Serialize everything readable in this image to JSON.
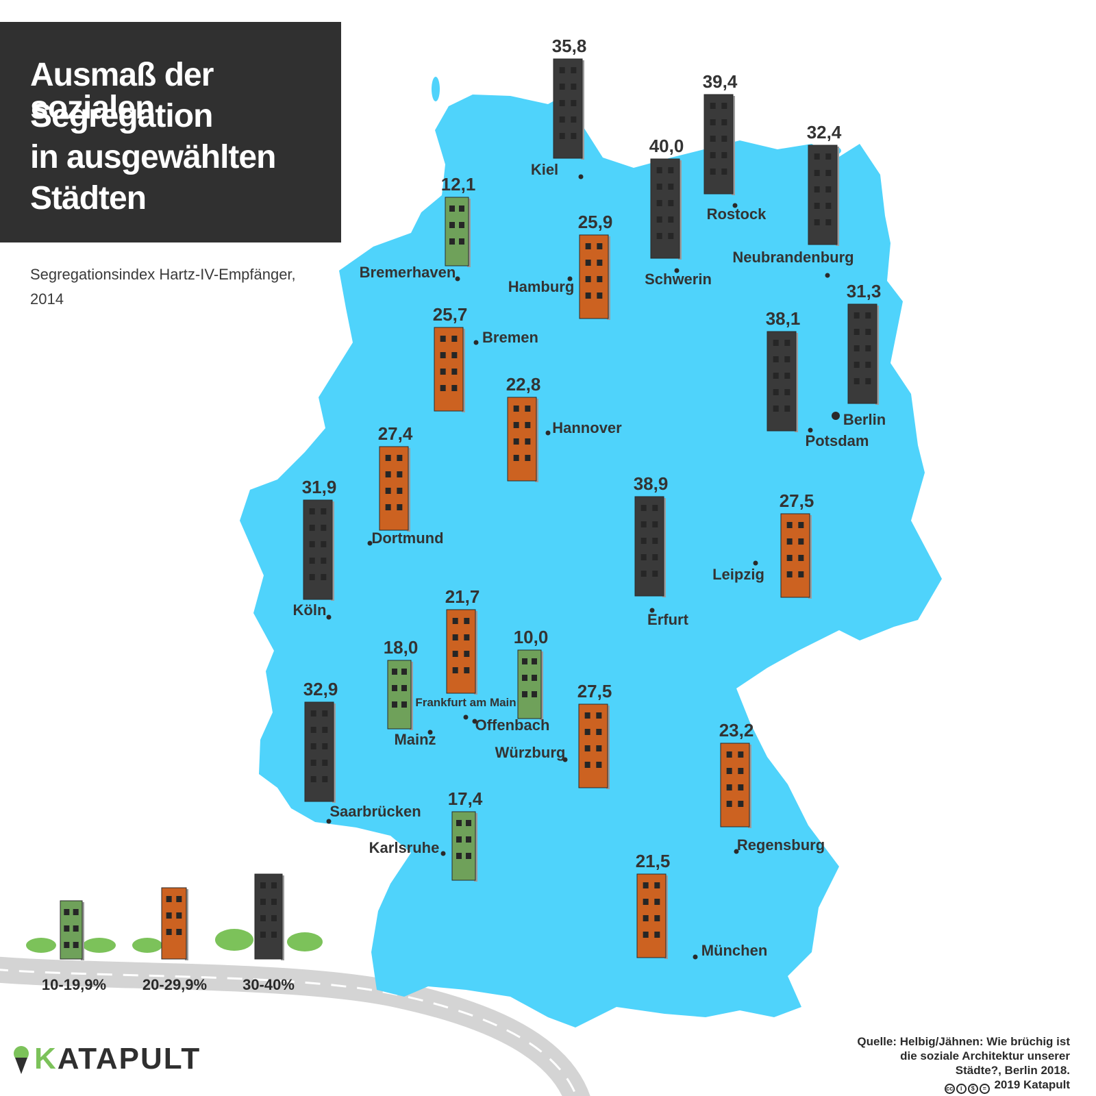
{
  "title": {
    "lines": [
      "Ausmaß der sozialen",
      "Segregation",
      "in ausgewählten",
      "Städten"
    ]
  },
  "subtitle": {
    "lines": [
      "Segregationsindex Hartz-IV-Empfänger,",
      "2014"
    ]
  },
  "source": {
    "lines": [
      "Quelle: Helbig/Jähnen: Wie brüchig ist",
      "die soziale Architektur unserer",
      "Städte?, Berlin 2018."
    ],
    "copyright": "2019 Katapult"
  },
  "logo": {
    "first_letter": "K",
    "rest": "ATAPULT"
  },
  "colors": {
    "map": "#4fd3fb",
    "low": "#6fa15a",
    "mid": "#cc6221",
    "high": "#3a3a3a",
    "window": "#262626",
    "label": "#333333",
    "bush": "#7cc25a",
    "road": "#d4d4d4"
  },
  "legend": [
    {
      "label": "10-19,9%",
      "class": "low"
    },
    {
      "label": "20-29,9%",
      "class": "mid"
    },
    {
      "label": "30-40%",
      "class": "high"
    }
  ],
  "cities": [
    {
      "name": "Kiel",
      "value": "35,8",
      "v": 35.8,
      "class": "high"
    },
    {
      "name": "Rostock",
      "value": "39,4",
      "v": 39.4,
      "class": "high"
    },
    {
      "name": "Schwerin",
      "value": "40,0",
      "v": 40.0,
      "class": "high"
    },
    {
      "name": "Neubrandenburg",
      "value": "32,4",
      "v": 32.4,
      "class": "high"
    },
    {
      "name": "Bremerhaven",
      "value": "12,1",
      "v": 12.1,
      "class": "low"
    },
    {
      "name": "Hamburg",
      "value": "25,9",
      "v": 25.9,
      "class": "mid"
    },
    {
      "name": "Bremen",
      "value": "25,7",
      "v": 25.7,
      "class": "mid"
    },
    {
      "name": "Berlin",
      "value": "31,3",
      "v": 31.3,
      "class": "high"
    },
    {
      "name": "Potsdam",
      "value": "38,1",
      "v": 38.1,
      "class": "high"
    },
    {
      "name": "Hannover",
      "value": "22,8",
      "v": 22.8,
      "class": "mid"
    },
    {
      "name": "Dortmund",
      "value": "27,4",
      "v": 27.4,
      "class": "mid"
    },
    {
      "name": "Köln",
      "value": "31,9",
      "v": 31.9,
      "class": "high"
    },
    {
      "name": "Erfurt",
      "value": "38,9",
      "v": 38.9,
      "class": "high"
    },
    {
      "name": "Leipzig",
      "value": "27,5",
      "v": 27.5,
      "class": "mid"
    },
    {
      "name": "Frankfurt am Main",
      "value": "21,7",
      "v": 21.7,
      "class": "mid"
    },
    {
      "name": "Offenbach",
      "value": "10,0",
      "v": 10.0,
      "class": "low"
    },
    {
      "name": "Mainz",
      "value": "18,0",
      "v": 18.0,
      "class": "low"
    },
    {
      "name": "Saarbrücken",
      "value": "32,9",
      "v": 32.9,
      "class": "high"
    },
    {
      "name": "Würzburg",
      "value": "27,5",
      "v": 27.5,
      "class": "mid"
    },
    {
      "name": "Regensburg",
      "value": "23,2",
      "v": 23.2,
      "class": "mid"
    },
    {
      "name": "Karlsruhe",
      "value": "17,4",
      "v": 17.4,
      "class": "low"
    },
    {
      "name": "München",
      "value": "21,5",
      "v": 21.5,
      "class": "mid"
    }
  ]
}
